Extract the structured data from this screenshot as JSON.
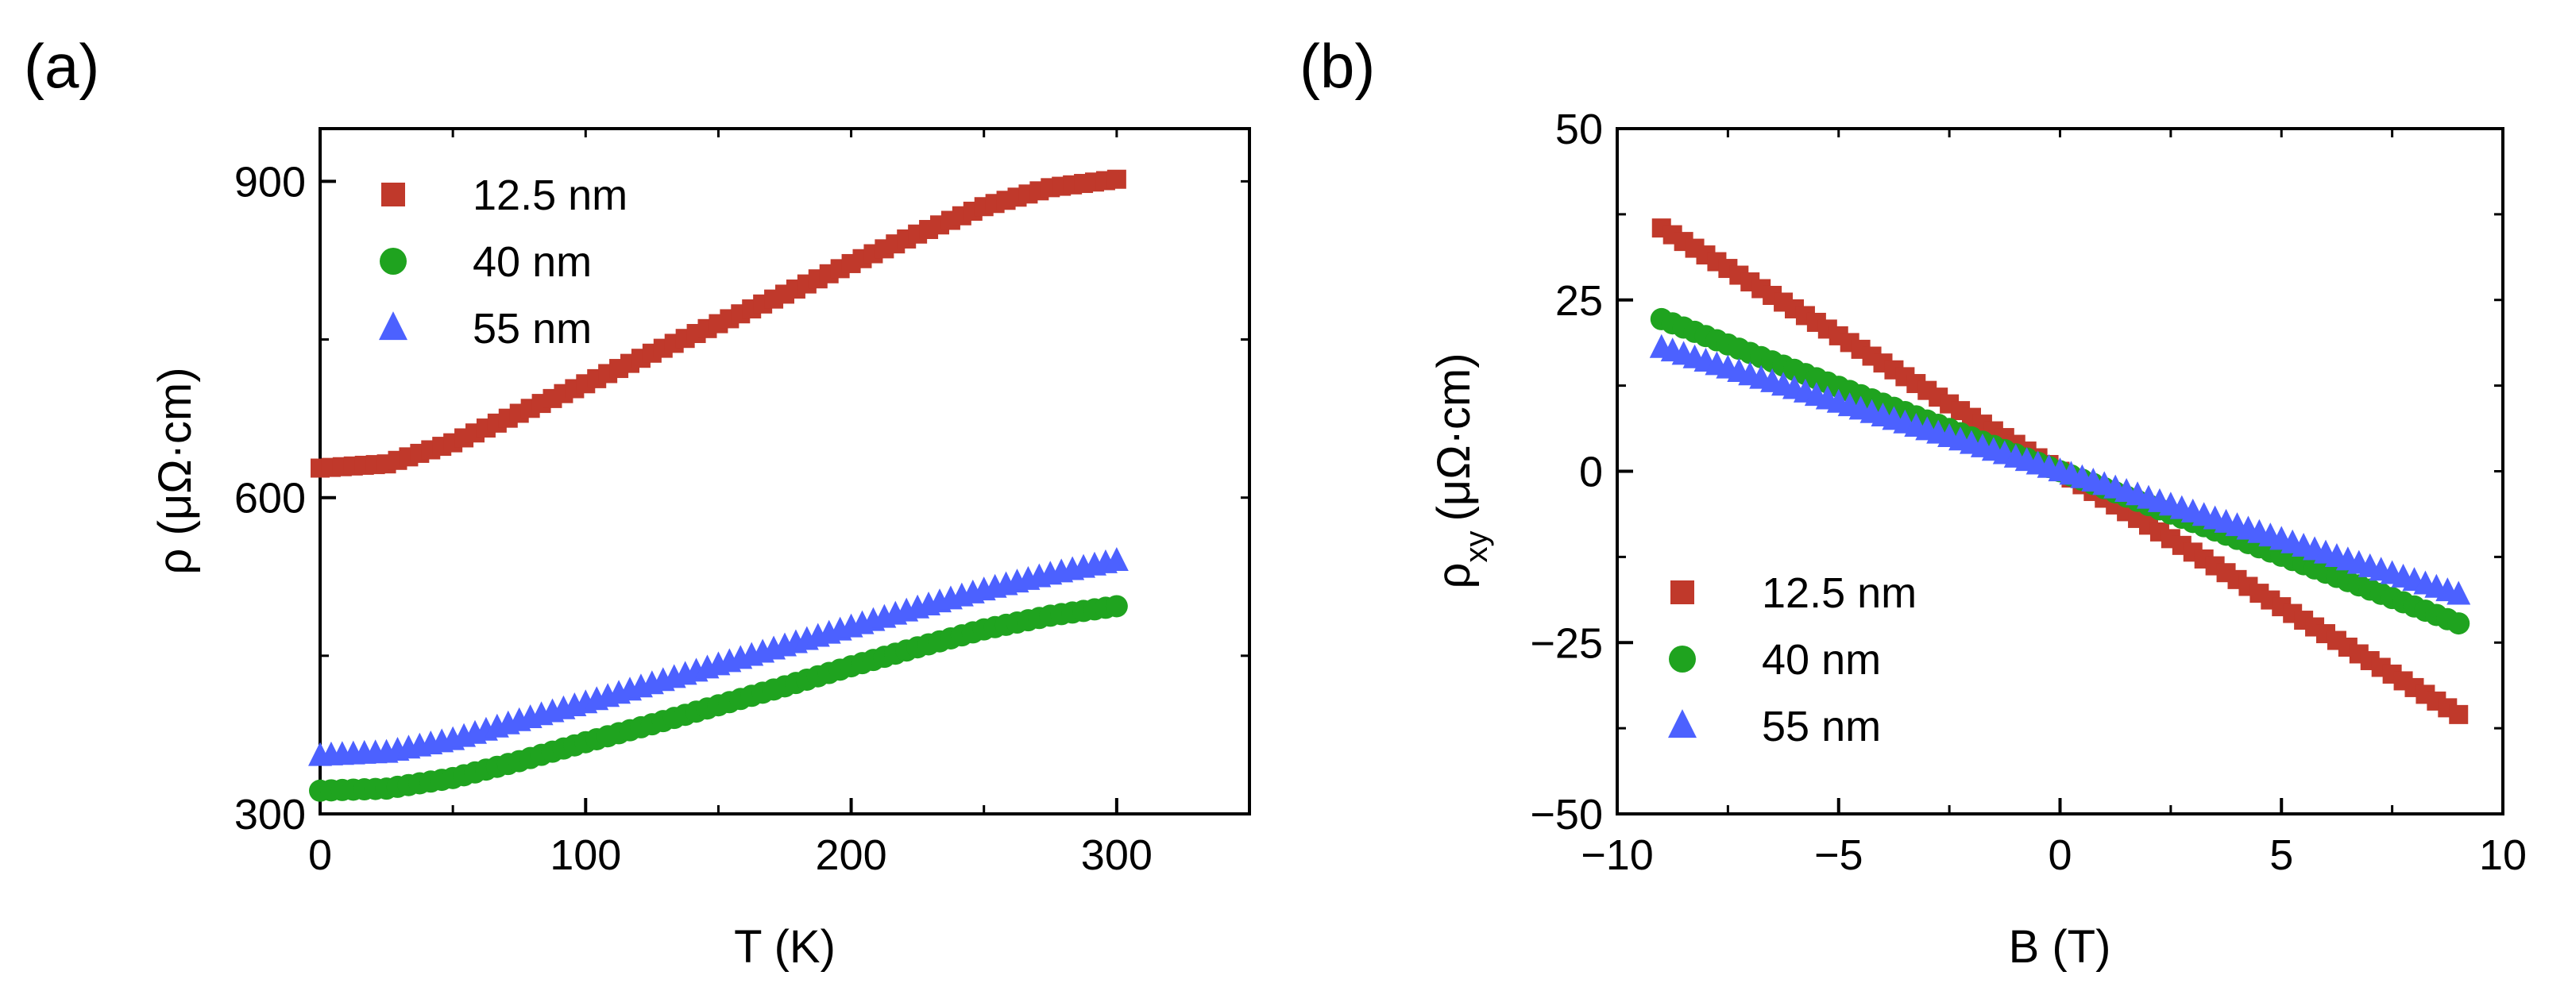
{
  "chart_data": [
    {
      "panel_label": "(a)",
      "type": "scatter",
      "xlabel": "T (K)",
      "ylabel": "ρ (μΩ·cm)",
      "xlim": [
        0,
        350
      ],
      "ylim": [
        300,
        950
      ],
      "xticks": [
        0,
        100,
        200,
        300
      ],
      "xtick_labels": [
        "0",
        "100",
        "200",
        "300"
      ],
      "xminor": [
        50,
        150,
        250,
        350
      ],
      "yticks": [
        300,
        600,
        900
      ],
      "ytick_labels": [
        "300",
        "600",
        "900"
      ],
      "yminor": [
        450,
        750
      ],
      "legend_position": "top-left",
      "series": [
        {
          "name": "12.5 nm",
          "marker": "square",
          "color": "#c0392b",
          "x": [
            0,
            25,
            50,
            75,
            100,
            125,
            150,
            175,
            200,
            225,
            250,
            275,
            300
          ],
          "y": [
            628,
            632,
            652,
            680,
            708,
            737,
            765,
            793,
            822,
            850,
            876,
            894,
            902
          ]
        },
        {
          "name": "40 nm",
          "marker": "circle",
          "color": "#1fa31f",
          "x": [
            0,
            25,
            50,
            75,
            100,
            125,
            150,
            175,
            200,
            225,
            250,
            275,
            300
          ],
          "y": [
            322,
            324,
            334,
            350,
            368,
            385,
            403,
            421,
            440,
            458,
            475,
            488,
            497
          ]
        },
        {
          "name": "55 nm",
          "marker": "triangle",
          "color": "#4c61ff",
          "x": [
            0,
            25,
            50,
            75,
            100,
            125,
            150,
            175,
            200,
            225,
            250,
            275,
            300
          ],
          "y": [
            355,
            358,
            370,
            388,
            405,
            423,
            441,
            459,
            477,
            495,
            512,
            527,
            540
          ]
        }
      ]
    },
    {
      "panel_label": "(b)",
      "type": "scatter",
      "xlabel": "B (T)",
      "ylabel_main": "ρ",
      "ylabel_sub": "xy",
      "ylabel_units": "(μΩ·cm)",
      "xlim": [
        -10,
        10
      ],
      "ylim": [
        -50,
        50
      ],
      "xticks": [
        -10,
        -5,
        0,
        5,
        10
      ],
      "xtick_labels": [
        "−10",
        "−5",
        "0",
        "5",
        "10"
      ],
      "xminor": [
        -7.5,
        -2.5,
        2.5,
        7.5
      ],
      "yticks": [
        -50,
        -25,
        0,
        25,
        50
      ],
      "ytick_labels": [
        "−50",
        "−25",
        "0",
        "25",
        "50"
      ],
      "yminor": [
        -37.5,
        -12.5,
        12.5,
        37.5
      ],
      "legend_position": "bottom-left",
      "series": [
        {
          "name": "12.5 nm",
          "marker": "square",
          "color": "#c0392b",
          "x": [
            -9,
            -7.5,
            -6,
            -4.5,
            -3,
            -1.5,
            0,
            1.5,
            3,
            4.5,
            6,
            7.5,
            9
          ],
          "y": [
            35.5,
            29.6,
            23.7,
            17.8,
            11.8,
            5.9,
            0,
            -5.9,
            -11.8,
            -17.8,
            -23.7,
            -29.6,
            -35.5
          ]
        },
        {
          "name": "40 nm",
          "marker": "circle",
          "color": "#1fa31f",
          "x": [
            -9,
            -7.5,
            -6,
            -4.5,
            -3,
            -1.5,
            0,
            1.5,
            3,
            4.5,
            6,
            7.5,
            9
          ],
          "y": [
            22.2,
            18.5,
            14.8,
            11.1,
            7.4,
            3.7,
            0,
            -3.7,
            -7.4,
            -11.1,
            -14.8,
            -18.5,
            -22.2
          ]
        },
        {
          "name": "55 nm",
          "marker": "triangle",
          "color": "#4c61ff",
          "x": [
            -9,
            -7.5,
            -6,
            -4.5,
            -3,
            -1.5,
            0,
            1.5,
            3,
            4.5,
            6,
            7.5,
            9
          ],
          "y": [
            18.0,
            15.0,
            12.0,
            9.0,
            6.0,
            3.0,
            0,
            -3.0,
            -6.0,
            -9.0,
            -12.0,
            -15.0,
            -18.0
          ]
        }
      ]
    }
  ]
}
